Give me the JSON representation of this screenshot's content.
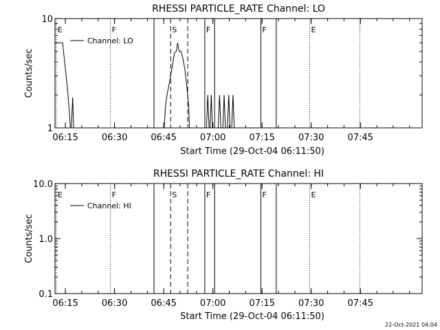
{
  "footer": {
    "timestamp": "22-Oct-2021 04:04"
  },
  "chart_data": [
    {
      "type": "line",
      "title": "RHESSI PARTICLE_RATE Channel: LO",
      "xlabel": "Start Time (29-Oct-04 06:11:50)",
      "ylabel": "Counts/sec",
      "x_unit": "minutes after 06:11:50",
      "xlim": [
        0,
        112
      ],
      "ylim": [
        1,
        10
      ],
      "y_scale": "log",
      "x_ticks": [
        {
          "x": 3.17,
          "label": "06:15"
        },
        {
          "x": 18.17,
          "label": "06:30"
        },
        {
          "x": 33.17,
          "label": "06:45"
        },
        {
          "x": 48.17,
          "label": "07:00"
        },
        {
          "x": 63.17,
          "label": "07:15"
        },
        {
          "x": 78.17,
          "label": "07:30"
        },
        {
          "x": 93.17,
          "label": "07:45"
        }
      ],
      "y_ticks": [
        {
          "y": 1,
          "label": "1"
        },
        {
          "y": 10,
          "label": "10"
        }
      ],
      "legend": {
        "label": "Channel: LO",
        "position": "top-left"
      },
      "flags": [
        {
          "x": 0.4,
          "label": "E",
          "style": "dotted"
        },
        {
          "x": 16.9,
          "label": "F",
          "style": "dotted"
        },
        {
          "x": 30.2,
          "label": "",
          "style": "solid"
        },
        {
          "x": 35.3,
          "label": "S",
          "style": "dashed"
        },
        {
          "x": 40.5,
          "label": "",
          "style": "dashed"
        },
        {
          "x": 45.7,
          "label": "F",
          "style": "solid"
        },
        {
          "x": 48.7,
          "label": "",
          "style": "solid"
        },
        {
          "x": 62.8,
          "label": "F",
          "style": "solid"
        },
        {
          "x": 67.5,
          "label": "",
          "style": "solid"
        },
        {
          "x": 77.7,
          "label": "E",
          "style": "dotted"
        },
        {
          "x": 93.0,
          "label": "",
          "style": "dotted"
        }
      ],
      "series": [
        {
          "segments": [
            [
              [
                0.0,
                6.0
              ],
              [
                2.3,
                6.0
              ],
              [
                2.6,
                5.0
              ],
              [
                3.1,
                3.6
              ],
              [
                3.5,
                2.8
              ],
              [
                3.9,
                2.1
              ],
              [
                4.3,
                1.5
              ],
              [
                4.7,
                1.0
              ],
              [
                5.0,
                1.0
              ],
              [
                5.4,
                1.9
              ],
              [
                5.7,
                1.0
              ]
            ],
            [
              [
                33.3,
                1.0
              ],
              [
                33.8,
                1.7
              ],
              [
                34.3,
                2.1
              ],
              [
                34.9,
                2.6
              ],
              [
                35.5,
                3.3
              ],
              [
                36.0,
                4.0
              ],
              [
                36.5,
                4.9
              ],
              [
                37.0,
                5.0
              ],
              [
                37.4,
                6.0
              ],
              [
                37.9,
                5.0
              ],
              [
                38.5,
                5.0
              ],
              [
                39.1,
                4.2
              ],
              [
                39.7,
                3.3
              ],
              [
                40.2,
                2.4
              ],
              [
                40.8,
                1.6
              ],
              [
                41.0,
                1.0
              ]
            ],
            [
              [
                46.2,
                1.0
              ],
              [
                46.6,
                2.0
              ],
              [
                47.0,
                1.0
              ],
              [
                47.3,
                1.0
              ],
              [
                47.7,
                2.0
              ],
              [
                48.0,
                1.0
              ]
            ],
            [
              [
                49.8,
                1.0
              ],
              [
                50.2,
                2.0
              ],
              [
                50.6,
                1.0
              ],
              [
                51.2,
                1.0
              ],
              [
                51.6,
                2.0
              ],
              [
                52.0,
                1.0
              ],
              [
                52.6,
                1.0
              ],
              [
                53.0,
                2.0
              ],
              [
                53.4,
                1.0
              ],
              [
                53.9,
                1.0
              ],
              [
                54.3,
                2.0
              ],
              [
                54.7,
                1.0
              ]
            ]
          ]
        }
      ]
    },
    {
      "type": "line",
      "title": "RHESSI PARTICLE_RATE Channel: HI",
      "xlabel": "Start Time (29-Oct-04 06:11:50)",
      "ylabel": "Counts/sec",
      "x_unit": "minutes after 06:11:50",
      "xlim": [
        0,
        112
      ],
      "ylim": [
        0.1,
        10
      ],
      "y_scale": "log",
      "x_ticks": [
        {
          "x": 3.17,
          "label": "06:15"
        },
        {
          "x": 18.17,
          "label": "06:30"
        },
        {
          "x": 33.17,
          "label": "06:45"
        },
        {
          "x": 48.17,
          "label": "07:00"
        },
        {
          "x": 63.17,
          "label": "07:15"
        },
        {
          "x": 78.17,
          "label": "07:30"
        },
        {
          "x": 93.17,
          "label": "07:45"
        }
      ],
      "y_ticks": [
        {
          "y": 0.1,
          "label": "0.1"
        },
        {
          "y": 1,
          "label": "1.0"
        },
        {
          "y": 10,
          "label": "10.0"
        }
      ],
      "legend": {
        "label": "Channel: HI",
        "position": "top-left"
      },
      "flags": [
        {
          "x": 0.4,
          "label": "E",
          "style": "dotted"
        },
        {
          "x": 16.9,
          "label": "F",
          "style": "dotted"
        },
        {
          "x": 30.2,
          "label": "",
          "style": "solid"
        },
        {
          "x": 35.3,
          "label": "S",
          "style": "dashed"
        },
        {
          "x": 40.5,
          "label": "",
          "style": "dashed"
        },
        {
          "x": 45.7,
          "label": "F",
          "style": "solid"
        },
        {
          "x": 48.7,
          "label": "",
          "style": "solid"
        },
        {
          "x": 62.8,
          "label": "F",
          "style": "solid"
        },
        {
          "x": 67.5,
          "label": "",
          "style": "solid"
        },
        {
          "x": 77.7,
          "label": "E",
          "style": "dotted"
        },
        {
          "x": 93.0,
          "label": "",
          "style": "dotted"
        }
      ],
      "series": []
    }
  ]
}
